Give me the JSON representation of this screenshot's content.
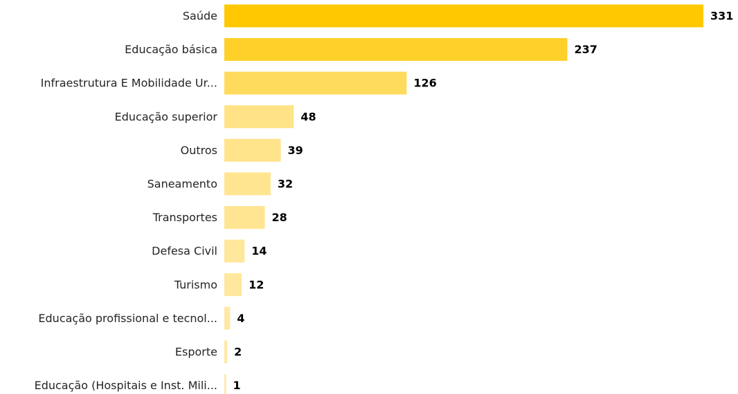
{
  "chart_data": {
    "type": "bar",
    "orientation": "horizontal",
    "categories": [
      "Saúde",
      "Educação básica",
      "Infraestrutura E Mobilidade Ur...",
      "Educação superior",
      "Outros",
      "Saneamento",
      "Transportes",
      "Defesa Civil",
      "Turismo",
      "Educação profissional e tecnol...",
      "Esporte",
      "Educação (Hospitais e Inst. Mili..."
    ],
    "values": [
      331,
      237,
      126,
      48,
      39,
      32,
      28,
      14,
      12,
      4,
      2,
      1
    ],
    "xlim": [
      0,
      331
    ],
    "grid": false,
    "legend": "none",
    "data_labels": true,
    "colors": {
      "max": "#FFC800",
      "min": "#FFE9A6"
    }
  }
}
